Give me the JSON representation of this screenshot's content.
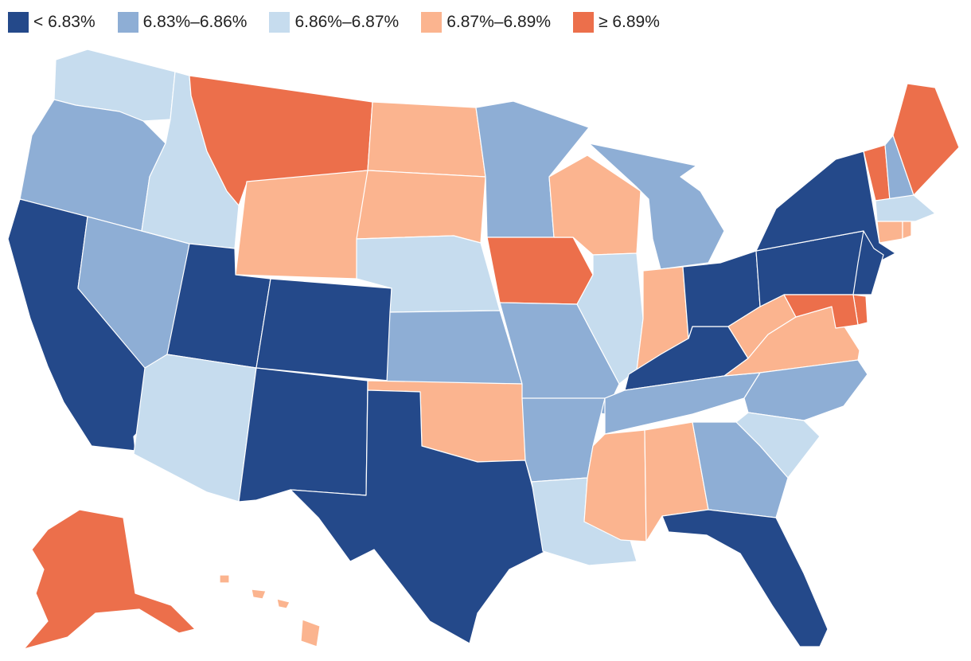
{
  "legend": [
    {
      "label": "< 6.83%",
      "color": "#24498a"
    },
    {
      "label": "6.83%–6.86%",
      "color": "#8eaed5"
    },
    {
      "label": "6.86%–6.87%",
      "color": "#c6dcee"
    },
    {
      "label": "6.87%–6.89%",
      "color": "#fbb48f"
    },
    {
      "label": "≥ 6.89%",
      "color": "#ec6f4b"
    }
  ],
  "bins": {
    "WA": 2,
    "OR": 1,
    "CA": 0,
    "NV": 1,
    "ID": 2,
    "MT": 4,
    "WY": 3,
    "UT": 0,
    "AZ": 2,
    "CO": 0,
    "NM": 0,
    "ND": 3,
    "SD": 3,
    "NE": 2,
    "KS": 1,
    "OK": 3,
    "TX": 0,
    "MN": 1,
    "IA": 4,
    "MO": 1,
    "AR": 1,
    "LA": 2,
    "WI": 3,
    "IL": 2,
    "MS": 3,
    "MI": 1,
    "IN": 3,
    "KY": 0,
    "TN": 1,
    "AL": 3,
    "OH": 0,
    "WV": 3,
    "VA": 3,
    "NC": 1,
    "SC": 2,
    "GA": 1,
    "FL": 0,
    "PA": 0,
    "NY": 0,
    "NJ": 0,
    "DE": 4,
    "MD": 4,
    "VT": 4,
    "NH": 1,
    "ME": 4,
    "MA": 2,
    "CT": 3,
    "RI": 3,
    "AK": 4,
    "HI": 3
  }
}
